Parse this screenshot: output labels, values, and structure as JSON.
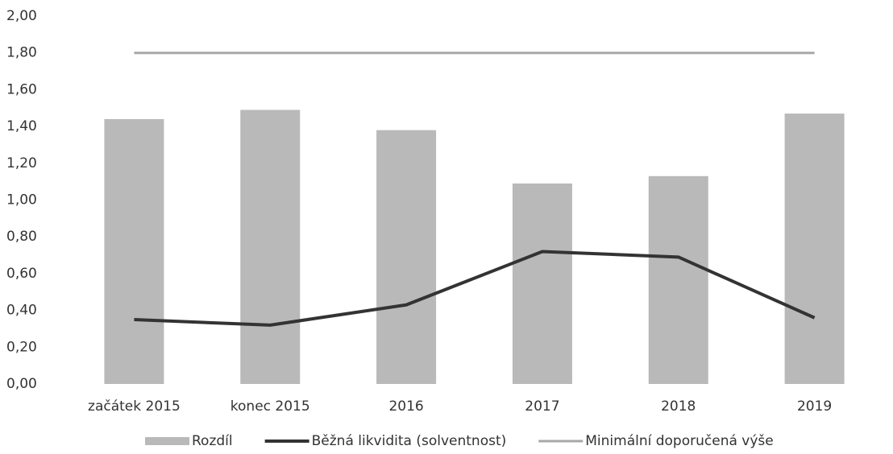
{
  "chart_data": {
    "type": "combo",
    "categories": [
      "začátek 2015",
      "konec 2015",
      "2016",
      "2017",
      "2018",
      "2019"
    ],
    "series": [
      {
        "name": "Rozdíl",
        "type": "bar",
        "color": "#b9b9b9",
        "values": [
          1.44,
          1.49,
          1.38,
          1.09,
          1.13,
          1.47
        ]
      },
      {
        "name": "Běžná likvidita (solventnost)",
        "type": "line",
        "color": "#333333",
        "values": [
          0.35,
          0.32,
          0.43,
          0.72,
          0.69,
          0.36
        ]
      },
      {
        "name": "Minimální doporučená výše",
        "type": "line",
        "color": "#a8a8a8",
        "values": [
          1.8,
          1.8,
          1.8,
          1.8,
          1.8,
          1.8
        ]
      }
    ],
    "ylim": [
      0,
      2
    ],
    "yticks": [
      {
        "value": 0,
        "label": "0,00"
      },
      {
        "value": 0.2,
        "label": "0,20"
      },
      {
        "value": 0.4,
        "label": "0,40"
      },
      {
        "value": 0.6,
        "label": "0,60"
      },
      {
        "value": 0.8,
        "label": "0,80"
      },
      {
        "value": 1,
        "label": "1,00"
      },
      {
        "value": 1.2,
        "label": "1,20"
      },
      {
        "value": 1.4,
        "label": "1,40"
      },
      {
        "value": 1.6,
        "label": "1,60"
      },
      {
        "value": 1.8,
        "label": "1,80"
      },
      {
        "value": 2,
        "label": "2,00"
      }
    ],
    "grid": false,
    "legend": "bottom"
  }
}
